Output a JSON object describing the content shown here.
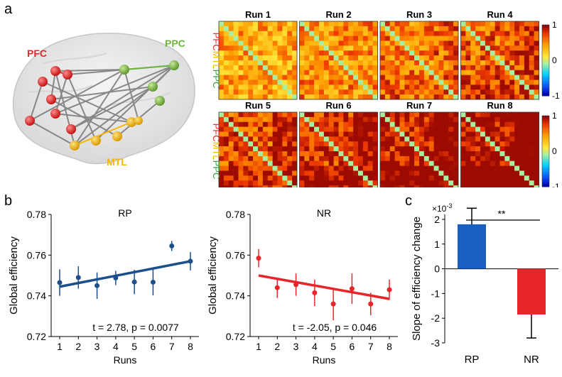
{
  "panels": {
    "a": "a",
    "b": "b",
    "c": "c"
  },
  "brain": {
    "regions": [
      {
        "label": "PFC",
        "color": "#e8262a"
      },
      {
        "label": "PPC",
        "color": "#6fb43f"
      },
      {
        "label": "MTL",
        "color": "#f5b800"
      }
    ]
  },
  "matrices": {
    "runs": [
      "Run  1",
      "Run  2",
      "Run  3",
      "Run 4",
      "Run 5",
      "Run 6",
      "Run 7",
      "Run 8"
    ],
    "axis_labels": [
      {
        "text": "PFC",
        "color": "#e8262a"
      },
      {
        "text": "MTL",
        "color": "#f5b800"
      },
      {
        "text": "PPC",
        "color": "#3a9a3a"
      }
    ],
    "colorbar_ticks": [
      "1",
      "0",
      "-1"
    ]
  },
  "chart_data": [
    {
      "type": "scatter",
      "title": "RP",
      "xlabel": "Runs",
      "ylabel": "Global efficiency",
      "x": [
        1,
        2,
        3,
        4,
        5,
        6,
        7,
        8
      ],
      "xticks": [
        "1",
        "2",
        "3",
        "4",
        "5",
        "6",
        "7",
        "8"
      ],
      "yticks": [
        "0.72",
        "0.74",
        "0.76",
        "0.78"
      ],
      "ylim": [
        0.72,
        0.78
      ],
      "series": [
        {
          "values": [
            0.7465,
            0.749,
            0.745,
            0.7488,
            0.7468,
            0.7467,
            0.7645,
            0.757
          ],
          "errors": [
            0.0065,
            0.0055,
            0.0065,
            0.0035,
            0.006,
            0.0065,
            0.0025,
            0.0045
          ]
        }
      ],
      "fit": {
        "start": 0.7445,
        "end": 0.757
      },
      "annotation": "t = 2.78, p = 0.0077",
      "color": "#1d4f8a"
    },
    {
      "type": "scatter",
      "title": "NR",
      "xlabel": "Runs",
      "ylabel": "Global efficiency",
      "x": [
        1,
        2,
        3,
        4,
        5,
        6,
        7,
        8
      ],
      "xticks": [
        "1",
        "2",
        "3",
        "4",
        "5",
        "6",
        "7",
        "8"
      ],
      "yticks": [
        "0.72",
        "0.74",
        "0.76",
        "0.78"
      ],
      "ylim": [
        0.72,
        0.78
      ],
      "series": [
        {
          "values": [
            0.7585,
            0.744,
            0.7455,
            0.7415,
            0.736,
            0.7435,
            0.736,
            0.743
          ],
          "errors": [
            0.0045,
            0.005,
            0.0055,
            0.0065,
            0.008,
            0.0075,
            0.0055,
            0.005
          ]
        }
      ],
      "fit": {
        "start": 0.75,
        "end": 0.7385
      },
      "annotation": "t = -2.05, p = 0.046",
      "color": "#e8262a"
    },
    {
      "type": "bar",
      "ylabel": "Slope of efficiency change",
      "yscale_label": "×10",
      "yscale_exp": "-3",
      "categories": [
        "RP",
        "NR"
      ],
      "values": [
        1.8,
        -1.85
      ],
      "errors": [
        0.65,
        0.95
      ],
      "colors": [
        "#1a5fc0",
        "#e8262a"
      ],
      "yticks": [
        "-3",
        "-2",
        "-1",
        "0",
        "1",
        "2"
      ],
      "ylim": [
        -3,
        2.2
      ],
      "significance": "**"
    }
  ]
}
